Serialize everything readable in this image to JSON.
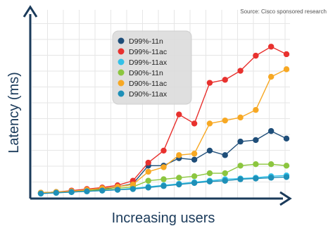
{
  "source_note": "Source: Cisco sponsored research",
  "chart_data": {
    "type": "line",
    "title": "",
    "xlabel": "Increasing users",
    "ylabel": "Latency (ms)",
    "x": [
      1,
      2,
      3,
      4,
      5,
      6,
      7,
      8,
      9,
      10,
      11,
      12,
      13,
      14,
      15,
      16,
      17
    ],
    "ylim": [
      0,
      100
    ],
    "grid": true,
    "legend_position": "top-center",
    "series": [
      {
        "name": "D99%-11n",
        "color": "#1f4e79",
        "values": [
          1,
          1.5,
          2,
          3,
          3.5,
          5,
          7,
          19,
          19,
          24,
          23,
          29,
          26,
          35,
          36,
          42,
          37
        ]
      },
      {
        "name": "D99%-11ac",
        "color": "#e8312e",
        "values": [
          1,
          1.5,
          2.5,
          3.5,
          4.5,
          6,
          9,
          21,
          29,
          53,
          47,
          74,
          76,
          82,
          92,
          98,
          93
        ]
      },
      {
        "name": "D99%-11ax",
        "color": "#33c1e8",
        "values": [
          0.5,
          1,
          1.5,
          2,
          2.5,
          3,
          4,
          5,
          6,
          7,
          8,
          9,
          10,
          10.5,
          11,
          12,
          12.5
        ]
      },
      {
        "name": "D90%-11n",
        "color": "#8cc63f",
        "values": [
          1,
          1.5,
          2,
          2.5,
          3,
          4,
          5,
          9,
          10,
          11,
          12,
          14,
          14,
          19,
          20,
          20,
          19
        ]
      },
      {
        "name": "D90%-11ac",
        "color": "#f7a823",
        "values": [
          1,
          1.5,
          2,
          3,
          4,
          5,
          6.5,
          15,
          18,
          26,
          27,
          47,
          49,
          51,
          56,
          78,
          83
        ]
      },
      {
        "name": "D90%-11ax",
        "color": "#1e90b8",
        "values": [
          0.5,
          1,
          1.5,
          2,
          2.5,
          3,
          3.5,
          4.5,
          5.5,
          6.5,
          7.5,
          8.5,
          9,
          10,
          10.5,
          11,
          11.5
        ]
      }
    ]
  }
}
